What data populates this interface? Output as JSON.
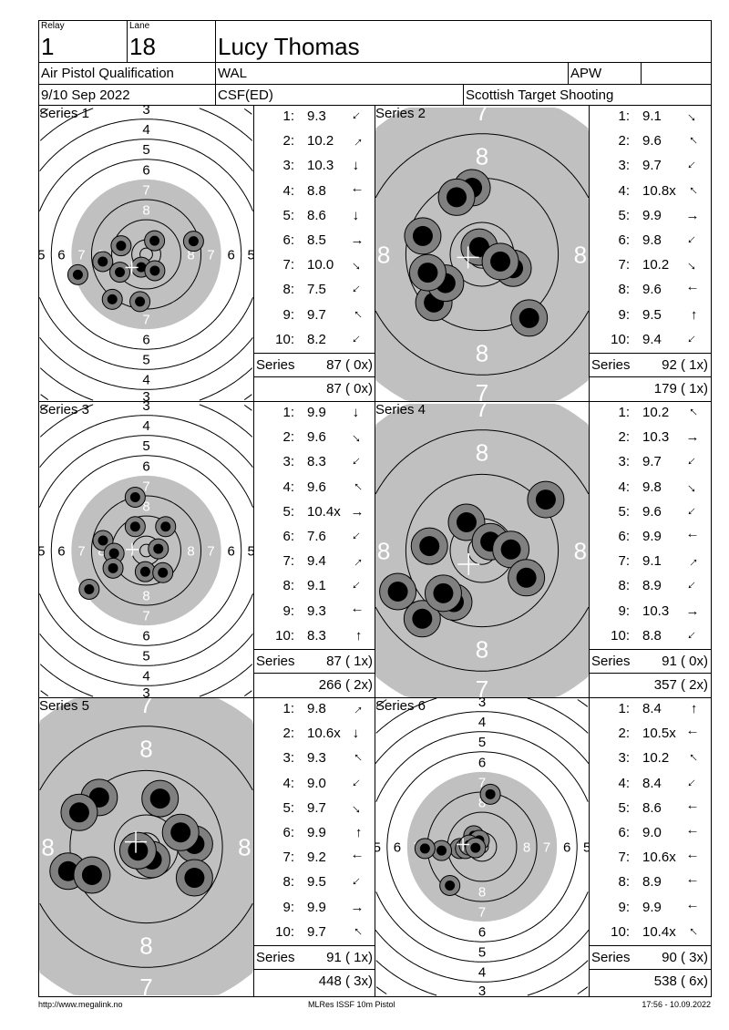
{
  "header": {
    "relay_label": "Relay",
    "relay": "1",
    "lane_label": "Lane",
    "lane": "18",
    "name": "Lucy Thomas",
    "event": "Air Pistol Qualification",
    "nation": "WAL",
    "class": "APW",
    "extra": "",
    "date": "9/10 Sep 2022",
    "venue_code": "CSF(ED)",
    "organizer": "Scottish Target Shooting"
  },
  "series_label": "Series",
  "colors": {
    "target_black": "#c0c0c0",
    "shot_outer": "#808080",
    "shot_inner": "#000000"
  },
  "series": [
    {
      "title": "Series 1",
      "view": "wide",
      "shots": [
        {
          "n": "1:",
          "score": "9.3",
          "dir": "sw"
        },
        {
          "n": "2:",
          "score": "10.2",
          "dir": "ne"
        },
        {
          "n": "3:",
          "score": "10.3",
          "dir": "s"
        },
        {
          "n": "4:",
          "score": "8.8",
          "dir": "w"
        },
        {
          "n": "5:",
          "score": "8.6",
          "dir": "s"
        },
        {
          "n": "6:",
          "score": "8.5",
          "dir": "e"
        },
        {
          "n": "7:",
          "score": "10.0",
          "dir": "se"
        },
        {
          "n": "8:",
          "score": "7.5",
          "dir": "sw"
        },
        {
          "n": "9:",
          "score": "9.7",
          "dir": "nw"
        },
        {
          "n": "10:",
          "score": "8.2",
          "dir": "sw"
        }
      ],
      "positions_mm": [
        [
          3.3,
          -5.4
        ],
        [
          18.8,
          -5.2
        ],
        [
          -10,
          -3.4
        ],
        [
          -17.3,
          2.9
        ],
        [
          -10.5,
          7.1
        ],
        [
          -2,
          5.1
        ],
        [
          3.4,
          6.5
        ],
        [
          -27.2,
          8.1
        ],
        [
          -13.5,
          17.9
        ],
        [
          -2.5,
          18.8
        ]
      ],
      "series_total": "87 ( 0x)",
      "running_total": "87 ( 0x)"
    },
    {
      "title": "Series 2",
      "view": "close",
      "shots": [
        {
          "n": "1:",
          "score": "9.1",
          "dir": "se"
        },
        {
          "n": "2:",
          "score": "9.6",
          "dir": "nw"
        },
        {
          "n": "3:",
          "score": "9.7",
          "dir": "sw"
        },
        {
          "n": "4:",
          "score": "10.8x",
          "dir": "nw"
        },
        {
          "n": "5:",
          "score": "9.9",
          "dir": "e"
        },
        {
          "n": "6:",
          "score": "9.8",
          "dir": "sw"
        },
        {
          "n": "7:",
          "score": "10.2",
          "dir": "se"
        },
        {
          "n": "8:",
          "score": "9.6",
          "dir": "w"
        },
        {
          "n": "9:",
          "score": "9.5",
          "dir": "n"
        },
        {
          "n": "10:",
          "score": "9.4",
          "dir": "sw"
        }
      ],
      "positions_mm": [
        [
          -1.8,
          -12
        ],
        [
          -4.6,
          -10.3
        ],
        [
          -10.7,
          -3.3
        ],
        [
          -0.5,
          -1.3
        ],
        [
          5.6,
          2.5
        ],
        [
          8.5,
          11.5
        ],
        [
          -8.7,
          8.7
        ],
        [
          -6.6,
          5.2
        ],
        [
          -9.8,
          3.3
        ],
        [
          3.3,
          1.3
        ]
      ],
      "series_total": "92 ( 1x)",
      "running_total": "179 ( 1x)"
    },
    {
      "title": "Series 3",
      "view": "wide",
      "shots": [
        {
          "n": "1:",
          "score": "9.9",
          "dir": "s"
        },
        {
          "n": "2:",
          "score": "9.6",
          "dir": "se"
        },
        {
          "n": "3:",
          "score": "8.3",
          "dir": "sw"
        },
        {
          "n": "4:",
          "score": "9.6",
          "dir": "nw"
        },
        {
          "n": "5:",
          "score": "10.4x",
          "dir": "e"
        },
        {
          "n": "6:",
          "score": "7.6",
          "dir": "sw"
        },
        {
          "n": "7:",
          "score": "9.4",
          "dir": "ne"
        },
        {
          "n": "8:",
          "score": "9.1",
          "dir": "sw"
        },
        {
          "n": "9:",
          "score": "9.3",
          "dir": "w"
        },
        {
          "n": "10:",
          "score": "8.3",
          "dir": "n"
        }
      ],
      "positions_mm": [
        [
          -4.4,
          -21.2
        ],
        [
          -4.4,
          -9.5
        ],
        [
          7.7,
          -9.5
        ],
        [
          -17.2,
          -4
        ],
        [
          -12.8,
          1.1
        ],
        [
          4.8,
          -0.7
        ],
        [
          -13.2,
          7
        ],
        [
          -0.4,
          8.4
        ],
        [
          6.6,
          8.8
        ],
        [
          -22.7,
          15.4
        ]
      ],
      "series_total": "87 ( 1x)",
      "running_total": "266 ( 2x)"
    },
    {
      "title": "Series 4",
      "view": "close",
      "shots": [
        {
          "n": "1:",
          "score": "10.2",
          "dir": "nw"
        },
        {
          "n": "2:",
          "score": "10.3",
          "dir": "e"
        },
        {
          "n": "3:",
          "score": "9.7",
          "dir": "sw"
        },
        {
          "n": "4:",
          "score": "9.8",
          "dir": "se"
        },
        {
          "n": "5:",
          "score": "9.6",
          "dir": "sw"
        },
        {
          "n": "6:",
          "score": "9.9",
          "dir": "w"
        },
        {
          "n": "7:",
          "score": "9.1",
          "dir": "ne"
        },
        {
          "n": "8:",
          "score": "8.9",
          "dir": "sw"
        },
        {
          "n": "9:",
          "score": "10.3",
          "dir": "e"
        },
        {
          "n": "10:",
          "score": "8.8",
          "dir": "sw"
        }
      ],
      "positions_mm": [
        [
          11.5,
          -9.2
        ],
        [
          -2.8,
          -5.1
        ],
        [
          -9.5,
          -0.8
        ],
        [
          1.5,
          -1.6
        ],
        [
          5.2,
          -0.2
        ],
        [
          8,
          4.9
        ],
        [
          -15.2,
          7.4
        ],
        [
          -10.8,
          12.3
        ],
        [
          -5.1,
          9.3
        ],
        [
          -7,
          7.7
        ]
      ],
      "series_total": "91 ( 0x)",
      "running_total": "357 ( 2x)"
    },
    {
      "title": "Series 5",
      "view": "close",
      "shots": [
        {
          "n": "1:",
          "score": "9.8",
          "dir": "ne"
        },
        {
          "n": "2:",
          "score": "10.6x",
          "dir": "s"
        },
        {
          "n": "3:",
          "score": "9.3",
          "dir": "nw"
        },
        {
          "n": "4:",
          "score": "9.0",
          "dir": "sw"
        },
        {
          "n": "5:",
          "score": "9.7",
          "dir": "se"
        },
        {
          "n": "6:",
          "score": "9.9",
          "dir": "n"
        },
        {
          "n": "7:",
          "score": "9.2",
          "dir": "w"
        },
        {
          "n": "8:",
          "score": "9.5",
          "dir": "sw"
        },
        {
          "n": "9:",
          "score": "9.9",
          "dir": "e"
        },
        {
          "n": "10:",
          "score": "9.7",
          "dir": "nw"
        }
      ],
      "positions_mm": [
        [
          2.5,
          -8.7
        ],
        [
          -8.5,
          -8.9
        ],
        [
          -12.1,
          -6.2
        ],
        [
          8.7,
          -0.5
        ],
        [
          1,
          2.3
        ],
        [
          8.7,
          5.6
        ],
        [
          -14.1,
          4.4
        ],
        [
          -9.8,
          5.1
        ],
        [
          6.2,
          -2.6
        ],
        [
          -1.5,
          0.7
        ]
      ],
      "series_total": "91 ( 1x)",
      "running_total": "448 ( 3x)"
    },
    {
      "title": "Series 6",
      "view": "wide",
      "shots": [
        {
          "n": "1:",
          "score": "8.4",
          "dir": "n"
        },
        {
          "n": "2:",
          "score": "10.5x",
          "dir": "w"
        },
        {
          "n": "3:",
          "score": "10.2",
          "dir": "nw"
        },
        {
          "n": "4:",
          "score": "8.4",
          "dir": "sw"
        },
        {
          "n": "5:",
          "score": "8.6",
          "dir": "w"
        },
        {
          "n": "6:",
          "score": "9.0",
          "dir": "w"
        },
        {
          "n": "7:",
          "score": "10.6x",
          "dir": "w"
        },
        {
          "n": "8:",
          "score": "8.9",
          "dir": "w"
        },
        {
          "n": "9:",
          "score": "9.9",
          "dir": "w"
        },
        {
          "n": "10:",
          "score": "10.4x",
          "dir": "nw"
        }
      ],
      "positions_mm": [
        [
          3.3,
          -20.9
        ],
        [
          -3.3,
          -4.4
        ],
        [
          -1.1,
          -2.6
        ],
        [
          -8.8,
          0.7
        ],
        [
          -16.1,
          1.5
        ],
        [
          -22.7,
          0.7
        ],
        [
          -6.6,
          0.7
        ],
        [
          -12.8,
          15.4
        ],
        [
          -5.1,
          -0.7
        ],
        [
          -2.6,
          0.4
        ]
      ],
      "series_total": "90 ( 3x)",
      "running_total": "538 ( 6x)"
    }
  ],
  "footer": {
    "url": "http://www.megalink.no",
    "software": "MLRes ISSF 10m Pistol",
    "timestamp": "17:56 - 10.09.2022"
  }
}
